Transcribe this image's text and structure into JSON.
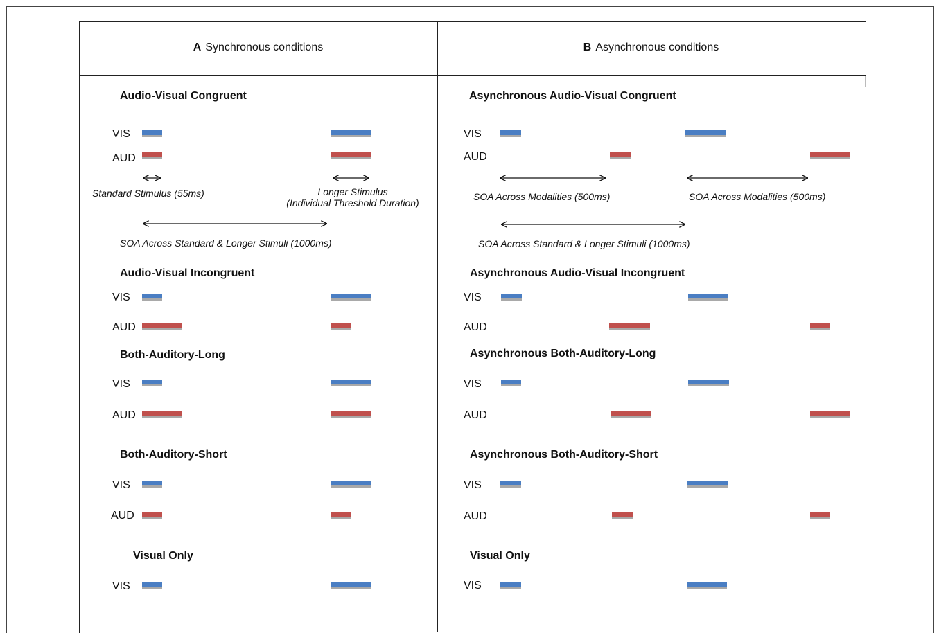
{
  "panels": {
    "a": {
      "letter": "A",
      "title": "Synchronous conditions"
    },
    "b": {
      "letter": "B",
      "title": "Asynchronous conditions"
    }
  },
  "row_labels": {
    "vis": "VIS",
    "aud": "AUD"
  },
  "colors": {
    "visual": "#4a7ec3",
    "auditory": "#c0504d",
    "shadow": "#a9a9a9"
  },
  "conditions_a": [
    "Audio-Visual Congruent",
    "Audio-Visual Incongruent",
    "Both-Auditory-Long",
    "Both-Auditory-Short",
    "Visual Only"
  ],
  "conditions_b": [
    "Asynchronous Audio-Visual Congruent",
    "Asynchronous Audio-Visual Incongruent",
    "Asynchronous Both-Auditory-Long",
    "Asynchronous Both-Auditory-Short",
    "Visual Only"
  ],
  "annotations": {
    "standard": "Standard Stimulus (55ms)",
    "longer_1": "Longer Stimulus",
    "longer_2": "(Individual  Threshold Duration)",
    "soa_standard_longer": "SOA Across Standard & Longer Stimuli (1000ms)",
    "soa_modalities": "SOA Across Modalities (500ms)"
  }
}
